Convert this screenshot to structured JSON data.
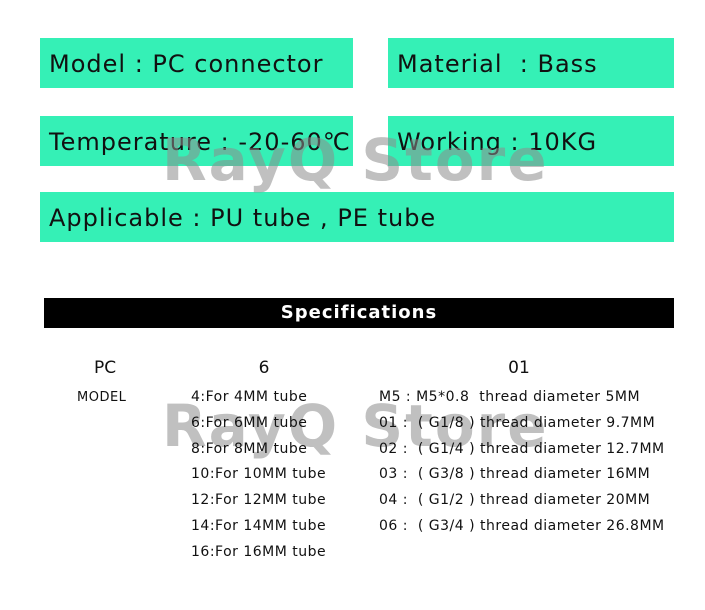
{
  "info_boxes": [
    "Model : PC connector",
    "Material  : Bass",
    "Temperature : -20-60℃",
    "Working : 10KG",
    "Applicable : PU tube , PE tube"
  ],
  "watermark": "RayQ Store",
  "specifications": {
    "title": "Specifications",
    "model": {
      "code": "PC",
      "label": "MODEL"
    },
    "tube": {
      "code": "6",
      "items": [
        "4:For 4MM tube",
        "6:For 6MM tube",
        "8:For 8MM tube",
        "10:For 10MM tube",
        "12:For 12MM tube",
        "14:For 14MM tube",
        "16:For 16MM tube"
      ]
    },
    "thread": {
      "code": "01",
      "items": [
        "M5 : M5*0.8  thread diameter 5MM",
        "01 :  ( G1/8 ) thread diameter 9.7MM",
        "02 :  ( G1/4 ) thread diameter 12.7MM",
        "03 :  ( G3/8 ) thread diameter 16MM",
        "04 :  ( G1/2 ) thread diameter 20MM",
        "06 :  ( G3/4 ) thread diameter 26.8MM"
      ]
    }
  }
}
